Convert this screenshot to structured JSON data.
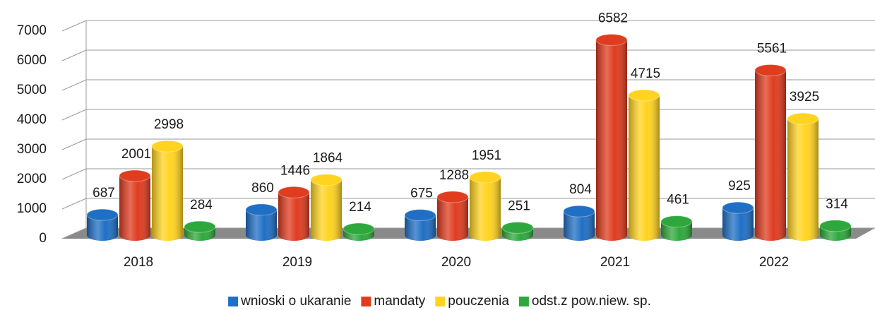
{
  "chart_data": {
    "type": "bar",
    "categories": [
      "2018",
      "2019",
      "2020",
      "2021",
      "2022"
    ],
    "series": [
      {
        "name": "wnioski o ukaranie",
        "color": "#1f6fc5",
        "values": [
          687,
          860,
          675,
          804,
          925
        ]
      },
      {
        "name": "mandaty",
        "color": "#e03c1f",
        "values": [
          2001,
          1446,
          1288,
          6582,
          5561
        ]
      },
      {
        "name": "pouczenia",
        "color": "#ffd320",
        "values": [
          2998,
          1864,
          1951,
          4715,
          3925
        ]
      },
      {
        "name": "odst.z pow.niew. sp.",
        "color": "#2ea83c",
        "values": [
          284,
          214,
          251,
          461,
          314
        ]
      }
    ],
    "ylim": [
      0,
      7000
    ],
    "yticks": [
      0,
      1000,
      2000,
      3000,
      4000,
      5000,
      6000,
      7000
    ],
    "grid": true,
    "legend": "bottom"
  }
}
